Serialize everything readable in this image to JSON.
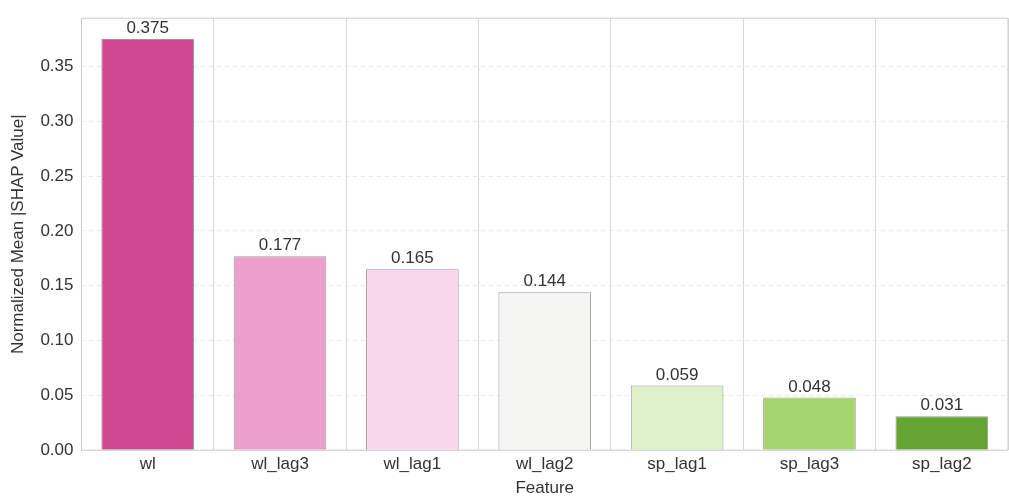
{
  "chart_data": {
    "type": "bar",
    "xlabel": "Feature",
    "ylabel": "Normalized Mean |SHAP Value|",
    "categories": [
      "wl",
      "wl_lag3",
      "wl_lag1",
      "wl_lag2",
      "sp_lag1",
      "sp_lag3",
      "sp_lag2"
    ],
    "values": [
      0.375,
      0.177,
      0.165,
      0.144,
      0.059,
      0.048,
      0.031
    ],
    "colors": [
      "#d0488f",
      "#eb9fca",
      "#f8d6eb",
      "#f5f5f4",
      "#dff1c8",
      "#a5d56d",
      "#64a531"
    ],
    "ylim": [
      0,
      0.394
    ],
    "yticks": [
      {
        "value": 0,
        "label": "0.00"
      },
      {
        "value": 0.05,
        "label": "0.05"
      },
      {
        "value": 0.1,
        "label": "0.10"
      },
      {
        "value": 0.15,
        "label": "0.15"
      },
      {
        "value": 0.2,
        "label": "0.20"
      },
      {
        "value": 0.25,
        "label": "0.25"
      },
      {
        "value": 0.3,
        "label": "0.30"
      },
      {
        "value": 0.35,
        "label": "0.35"
      }
    ],
    "grid": true,
    "data_labels": true
  }
}
